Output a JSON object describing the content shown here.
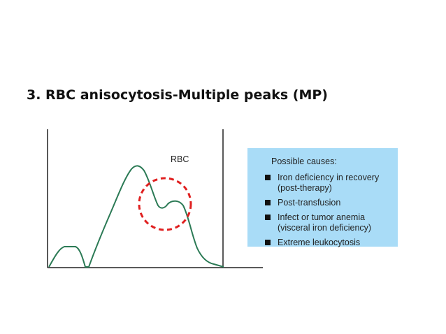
{
  "title": "3.  RBC anisocytosis-Multiple peaks (MP)",
  "diagram": {
    "curve_label": "RBC"
  },
  "causes": {
    "heading": "Possible causes:",
    "items": [
      [
        "Iron deficiency in recovery",
        "(post-therapy)"
      ],
      [
        "Post-transfusion"
      ],
      [
        "Infect or tumor anemia",
        "(visceral iron deficiency)"
      ],
      [
        "Extreme leukocytosis"
      ]
    ]
  }
}
